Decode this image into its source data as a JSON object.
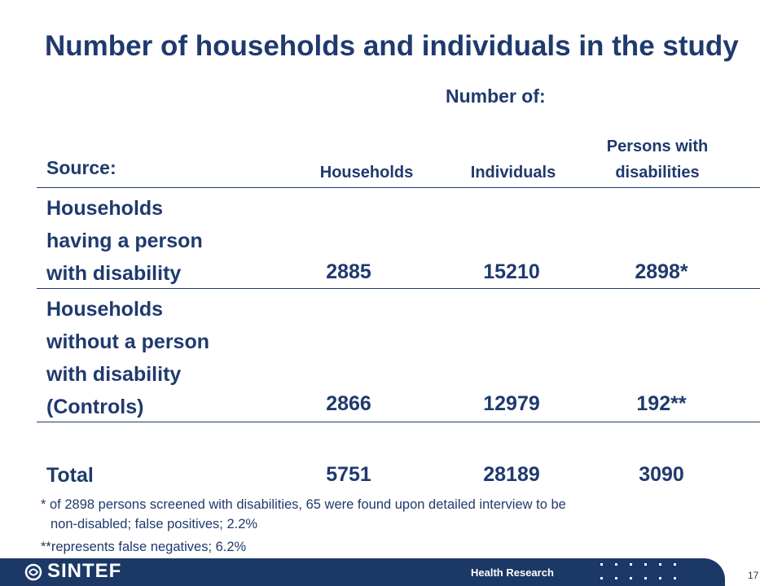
{
  "slide": {
    "title": "Number of households and individuals in the study",
    "number_of_label": "Number of:",
    "source_label": "Source:",
    "columns": [
      "Households",
      "Individuals",
      "Persons with disabilities"
    ],
    "rows": [
      {
        "label_lines": [
          "Households",
          "having a person",
          "with disability"
        ],
        "values": [
          "2885",
          "15210",
          "2898*"
        ]
      },
      {
        "label_lines": [
          "Households",
          "without a person",
          "with disability",
          "(Controls)"
        ],
        "values": [
          "2866",
          "12979",
          "192**"
        ]
      },
      {
        "label_lines": [
          "Total"
        ],
        "values": [
          "5751",
          "28189",
          "3090"
        ]
      }
    ],
    "notes": [
      "* of 2898 persons screened with disabilities, 65 were found upon detailed interview to be",
      "non-disabled; false positives; 2.2%",
      "**represents false negatives; 6.2%"
    ]
  },
  "footer": {
    "logo_text": "SINTEF",
    "department": "Health Research",
    "page_number": "17",
    "bar_color": "#1b3866"
  },
  "colors": {
    "text": "#1f3a6e"
  }
}
